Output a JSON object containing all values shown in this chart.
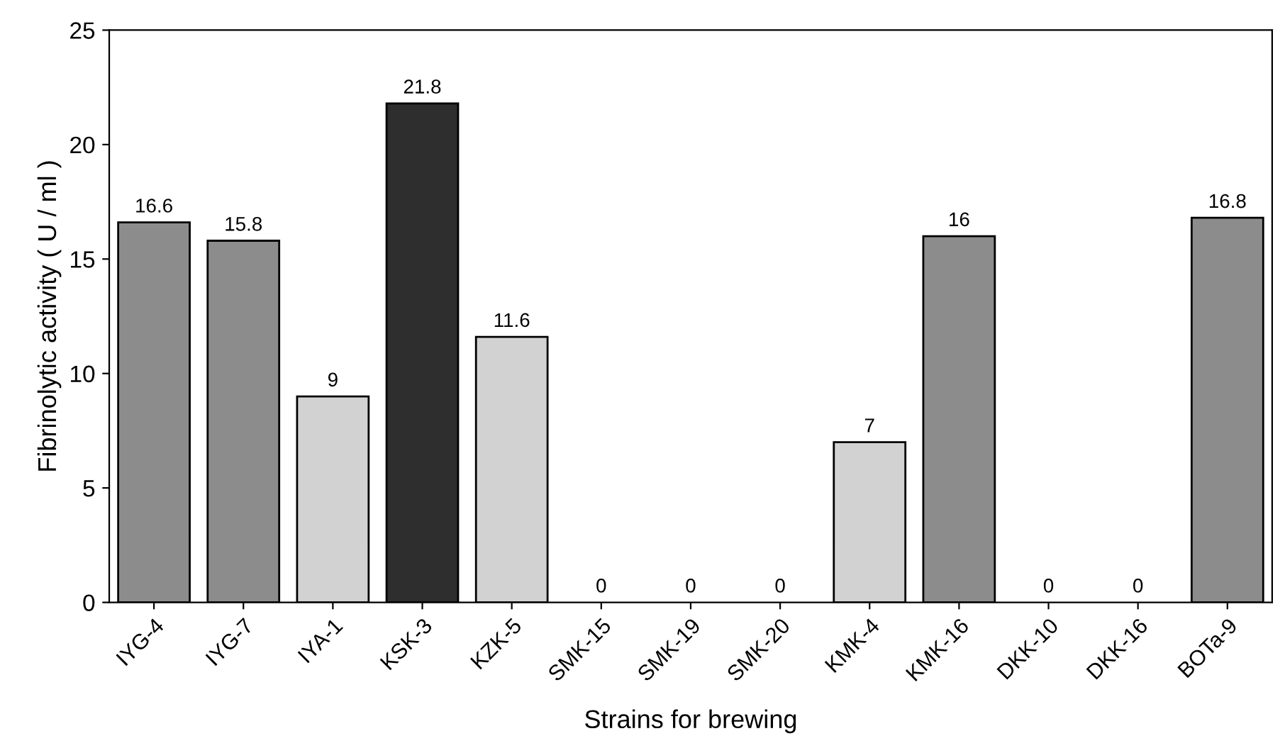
{
  "chart_data": {
    "type": "bar",
    "xlabel": "Strains for brewing",
    "ylabel": "Fibrinolytic activity ( U / ml )",
    "categories": [
      "IYG-4",
      "IYG-7",
      "IYA-1",
      "KSK-3",
      "KZK-5",
      "SMK-15",
      "SMK-19",
      "SMK-20",
      "KMK-4",
      "KMK-16",
      "DKK-10",
      "DKK-16",
      "BOTa-9"
    ],
    "values": [
      16.6,
      15.8,
      9,
      21.8,
      11.6,
      0,
      0,
      0,
      7,
      16,
      0,
      0,
      16.8
    ],
    "colors": [
      "#8c8c8c",
      "#8c8c8c",
      "#d2d2d2",
      "#2e2e2e",
      "#d2d2d2",
      "#d2d2d2",
      "#d2d2d2",
      "#d2d2d2",
      "#d2d2d2",
      "#8c8c8c",
      "#d2d2d2",
      "#d2d2d2",
      "#8c8c8c"
    ],
    "ylim": [
      0,
      25
    ],
    "yticks": [
      0,
      5,
      10,
      15,
      20,
      25
    ],
    "data_labels": true,
    "grid": false
  }
}
